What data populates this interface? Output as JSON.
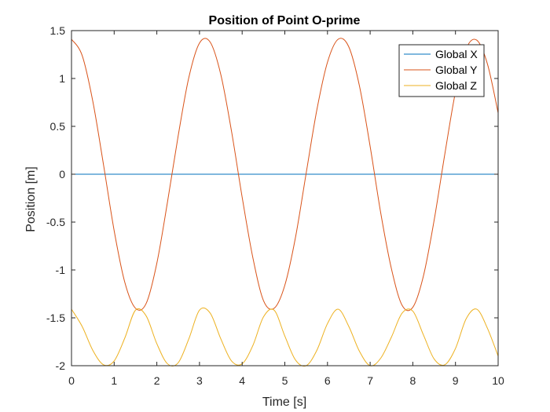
{
  "chart_data": {
    "type": "line",
    "title": "Position of Point O-prime",
    "xlabel": "Time [s]",
    "ylabel": "Position [m]",
    "xlim": [
      0,
      10
    ],
    "ylim": [
      -2,
      1.5
    ],
    "xticks": [
      0,
      1,
      2,
      3,
      4,
      5,
      6,
      7,
      8,
      9,
      10
    ],
    "xtick_labels": [
      "0",
      "1",
      "2",
      "3",
      "4",
      "5",
      "6",
      "7",
      "8",
      "9",
      "10"
    ],
    "yticks": [
      1.5,
      1,
      0.5,
      0,
      -0.5,
      -1,
      -1.5,
      -2
    ],
    "ytick_labels": [
      "1.5",
      "1",
      "0.5",
      "0",
      "-0.5",
      "-1",
      "-1.5",
      "-2"
    ],
    "grid": false,
    "legend_position": "top-right",
    "series": [
      {
        "name": "Global X",
        "color": "#0072BD",
        "x": [
          0,
          10
        ],
        "y": [
          0,
          0
        ]
      },
      {
        "name": "Global Y",
        "color": "#D95319",
        "x": [
          0,
          0.25,
          0.5,
          0.75,
          1.0,
          1.25,
          1.5,
          1.75,
          2.0,
          2.25,
          2.5,
          2.75,
          3.0,
          3.25,
          3.5,
          3.75,
          4.0,
          4.25,
          4.5,
          4.75,
          5.0,
          5.25,
          5.5,
          5.75,
          6.0,
          6.25,
          6.5,
          6.75,
          7.0,
          7.25,
          7.5,
          7.75,
          8.0,
          8.25,
          8.5,
          8.75,
          9.0,
          9.25,
          9.5,
          9.75,
          10.0
        ],
        "y": [
          1.41,
          1.24,
          0.76,
          0.1,
          -0.59,
          -1.13,
          -1.4,
          -1.35,
          -0.93,
          -0.29,
          0.4,
          1.01,
          1.37,
          1.38,
          1.04,
          0.45,
          -0.24,
          -0.87,
          -1.32,
          -1.4,
          -1.16,
          -0.66,
          0.01,
          0.67,
          1.17,
          1.41,
          1.33,
          0.92,
          0.29,
          -0.41,
          -0.99,
          -1.37,
          -1.39,
          -1.06,
          -0.48,
          0.21,
          0.86,
          1.31,
          1.4,
          1.15,
          0.64
        ]
      },
      {
        "name": "Global Z",
        "color": "#EDB120",
        "x": [
          0,
          0.25,
          0.5,
          0.75,
          1.0,
          1.25,
          1.5,
          1.75,
          2.0,
          2.25,
          2.5,
          2.75,
          3.0,
          3.25,
          3.5,
          3.75,
          4.0,
          4.25,
          4.5,
          4.75,
          5.0,
          5.25,
          5.5,
          5.75,
          6.0,
          6.25,
          6.5,
          6.75,
          7.0,
          7.25,
          7.5,
          7.75,
          8.0,
          8.25,
          8.5,
          8.75,
          9.0,
          9.25,
          9.5,
          9.75,
          10.0
        ],
        "y": [
          -1.41,
          -1.59,
          -1.84,
          -1.99,
          -1.95,
          -1.71,
          -1.42,
          -1.48,
          -1.77,
          -1.98,
          -1.97,
          -1.72,
          -1.42,
          -1.45,
          -1.72,
          -1.95,
          -1.98,
          -1.79,
          -1.49,
          -1.42,
          -1.69,
          -1.94,
          -2.0,
          -1.84,
          -1.56,
          -1.41,
          -1.59,
          -1.85,
          -2.0,
          -1.92,
          -1.7,
          -1.45,
          -1.43,
          -1.68,
          -1.93,
          -1.99,
          -1.82,
          -1.51,
          -1.41,
          -1.61,
          -1.9
        ]
      }
    ]
  }
}
